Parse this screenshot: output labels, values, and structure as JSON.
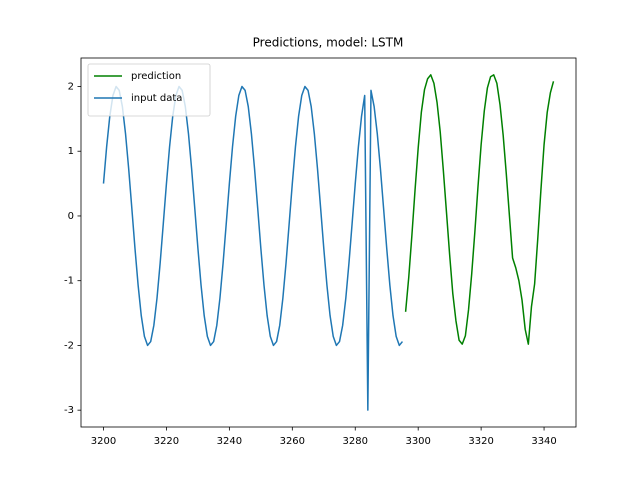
{
  "chart_data": {
    "type": "line",
    "title": "Predictions, model: LSTM",
    "legend": "upper left",
    "xlim": [
      3192.85,
      3350.15
    ],
    "xticks": [
      3200,
      3220,
      3240,
      3260,
      3280,
      3300,
      3320,
      3340
    ],
    "ylim": [
      -3.26,
      2.44
    ],
    "yticks": [
      -3,
      -2,
      -1,
      0,
      1,
      2
    ],
    "series": [
      {
        "name": "prediction",
        "color": "#008000",
        "x": [
          3296,
          3297,
          3298,
          3299,
          3300,
          3301,
          3302,
          3303,
          3304,
          3305,
          3306,
          3307,
          3308,
          3309,
          3310,
          3311,
          3312,
          3313,
          3314,
          3315,
          3316,
          3317,
          3318,
          3319,
          3320,
          3321,
          3322,
          3323,
          3324,
          3325,
          3326,
          3327,
          3328,
          3329,
          3330,
          3331,
          3332,
          3333,
          3334,
          3335,
          3336,
          3337,
          3338,
          3339,
          3340,
          3341,
          3342,
          3343
        ],
        "values": [
          -1.48,
          -0.95,
          -0.3,
          0.4,
          1.05,
          1.6,
          1.95,
          2.12,
          2.18,
          2.05,
          1.75,
          1.3,
          0.7,
          0.05,
          -0.6,
          -1.2,
          -1.62,
          -1.92,
          -1.98,
          -1.85,
          -1.45,
          -0.9,
          -0.25,
          0.45,
          1.1,
          1.62,
          1.98,
          2.15,
          2.18,
          2.05,
          1.72,
          1.25,
          0.65,
          0.0,
          -0.65,
          -0.8,
          -1.0,
          -1.3,
          -1.75,
          -1.98,
          -1.4,
          -1.05,
          -0.35,
          0.4,
          1.1,
          1.6,
          1.9,
          2.08
        ]
      },
      {
        "name": "input data",
        "color": "#1f77b4",
        "x": [
          3200,
          3201,
          3202,
          3203,
          3204,
          3205,
          3206,
          3207,
          3208,
          3209,
          3210,
          3211,
          3212,
          3213,
          3214,
          3215,
          3216,
          3217,
          3218,
          3219,
          3220,
          3221,
          3222,
          3223,
          3224,
          3225,
          3226,
          3227,
          3228,
          3229,
          3230,
          3231,
          3232,
          3233,
          3234,
          3235,
          3236,
          3237,
          3238,
          3239,
          3240,
          3241,
          3242,
          3243,
          3244,
          3245,
          3246,
          3247,
          3248,
          3249,
          3250,
          3251,
          3252,
          3253,
          3254,
          3255,
          3256,
          3257,
          3258,
          3259,
          3260,
          3261,
          3262,
          3263,
          3264,
          3265,
          3266,
          3267,
          3268,
          3269,
          3270,
          3271,
          3272,
          3273,
          3274,
          3275,
          3276,
          3277,
          3278,
          3279,
          3280,
          3281,
          3282,
          3283,
          3284,
          3285,
          3286,
          3287,
          3288,
          3289,
          3290,
          3291,
          3292,
          3293,
          3294,
          3295
        ],
        "values": [
          0.5,
          1.07,
          1.54,
          1.86,
          2.0,
          1.94,
          1.69,
          1.27,
          0.73,
          0.12,
          -0.5,
          -1.07,
          -1.54,
          -1.86,
          -2.0,
          -1.94,
          -1.69,
          -1.27,
          -0.73,
          -0.12,
          0.5,
          1.07,
          1.54,
          1.86,
          2.0,
          1.94,
          1.69,
          1.27,
          0.73,
          0.12,
          -0.5,
          -1.07,
          -1.54,
          -1.86,
          -2.0,
          -1.94,
          -1.69,
          -1.27,
          -0.73,
          -0.12,
          0.5,
          1.07,
          1.54,
          1.86,
          2.0,
          1.94,
          1.69,
          1.27,
          0.73,
          0.12,
          -0.5,
          -1.07,
          -1.54,
          -1.86,
          -2.0,
          -1.94,
          -1.69,
          -1.27,
          -0.73,
          -0.12,
          0.5,
          1.07,
          1.54,
          1.86,
          2.0,
          1.94,
          1.69,
          1.27,
          0.73,
          0.12,
          -0.5,
          -1.07,
          -1.54,
          -1.86,
          -2.0,
          -1.94,
          -1.69,
          -1.27,
          -0.73,
          -0.12,
          0.5,
          1.07,
          1.54,
          1.86,
          -3,
          1.94,
          1.69,
          1.27,
          0.73,
          0.12,
          -0.5,
          -1.07,
          -1.54,
          -1.86,
          -2.0,
          -1.94
        ]
      }
    ]
  }
}
